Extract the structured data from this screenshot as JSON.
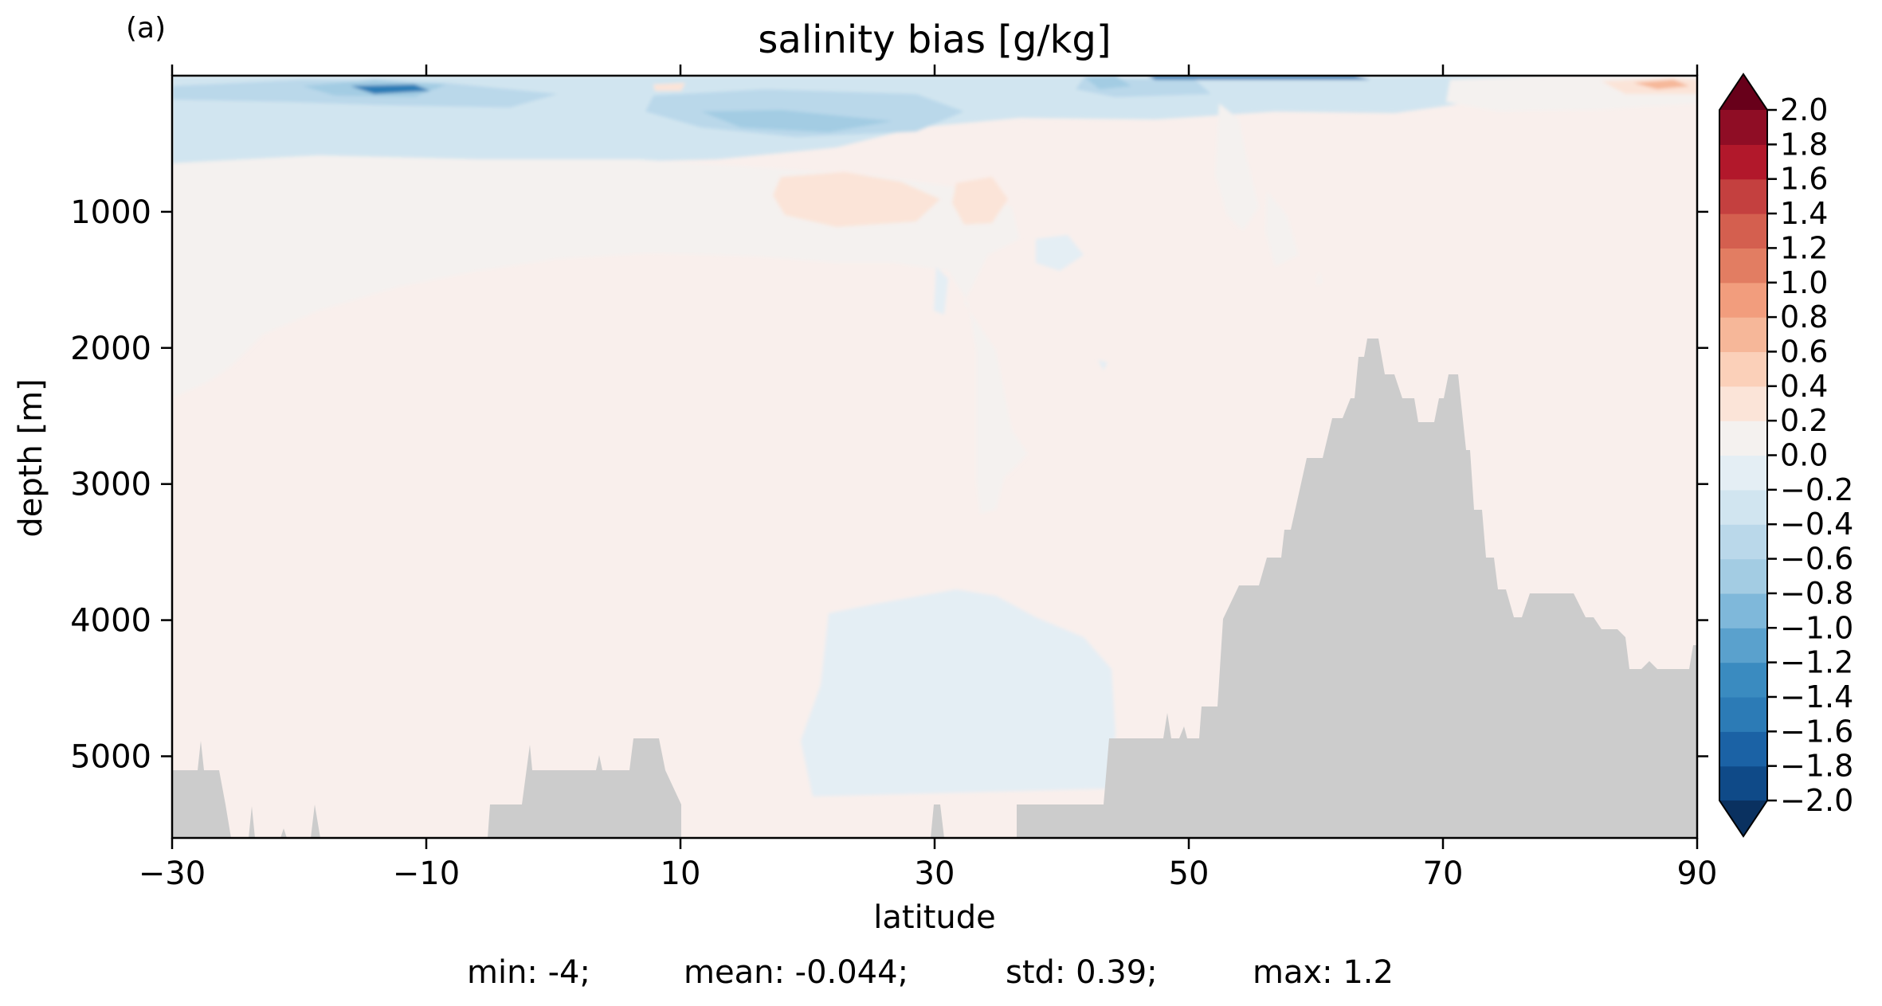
{
  "panel_label": "(a)",
  "chart_data": {
    "type": "filled-contour",
    "title": "salinity bias [g/kg]",
    "xlabel": "latitude",
    "ylabel": "depth [m]",
    "xlim": [
      -30,
      90
    ],
    "ylim": [
      5600,
      0
    ],
    "y_inverted": true,
    "x_ticks": [
      "−30",
      "−10",
      "10",
      "30",
      "50",
      "70",
      "90"
    ],
    "x_tick_values": [
      -30,
      -10,
      10,
      30,
      50,
      70,
      90
    ],
    "y_ticks": [
      "1000",
      "2000",
      "3000",
      "4000",
      "5000"
    ],
    "y_tick_values": [
      1000,
      2000,
      3000,
      4000,
      5000
    ],
    "colormap": "RdBu_r",
    "colorbar": {
      "levels": [
        -2.0,
        -1.8,
        -1.6,
        -1.4,
        -1.2,
        -1.0,
        -0.8,
        -0.6,
        -0.4,
        -0.2,
        0.0,
        0.2,
        0.4,
        0.6,
        0.8,
        1.0,
        1.2,
        1.4,
        1.6,
        1.8,
        2.0
      ],
      "tick_labels": [
        "2.0",
        "1.8",
        "1.6",
        "1.4",
        "1.2",
        "1.0",
        "0.8",
        "0.6",
        "0.4",
        "0.2",
        "0.0",
        "−0.2",
        "−0.4",
        "−0.6",
        "−0.8",
        "−1.0",
        "−1.2",
        "−1.4",
        "−1.6",
        "−1.8",
        "−2.0"
      ],
      "colors": [
        "#0f4a88",
        "#1b62a5",
        "#2c7bb6",
        "#3a8bc0",
        "#5aa1cd",
        "#7fb8da",
        "#a3cce3",
        "#bad8ea",
        "#d1e5f0",
        "#e4eef4",
        "#f4f1ef",
        "#fbe4d8",
        "#fbd0b9",
        "#f6b799",
        "#f29d7d",
        "#e27d62",
        "#d45f4f",
        "#c4403f",
        "#b2182b",
        "#8f0d25"
      ],
      "extend": "both",
      "under_color": "#0a3160",
      "over_color": "#68001a"
    },
    "land_color": "#cccccc",
    "background_level_color": "#f9efec",
    "stats": {
      "min": "min: -4;",
      "mean": "mean: -0.044;",
      "std": "std: 0.39;",
      "max": "max: 1.2"
    }
  }
}
